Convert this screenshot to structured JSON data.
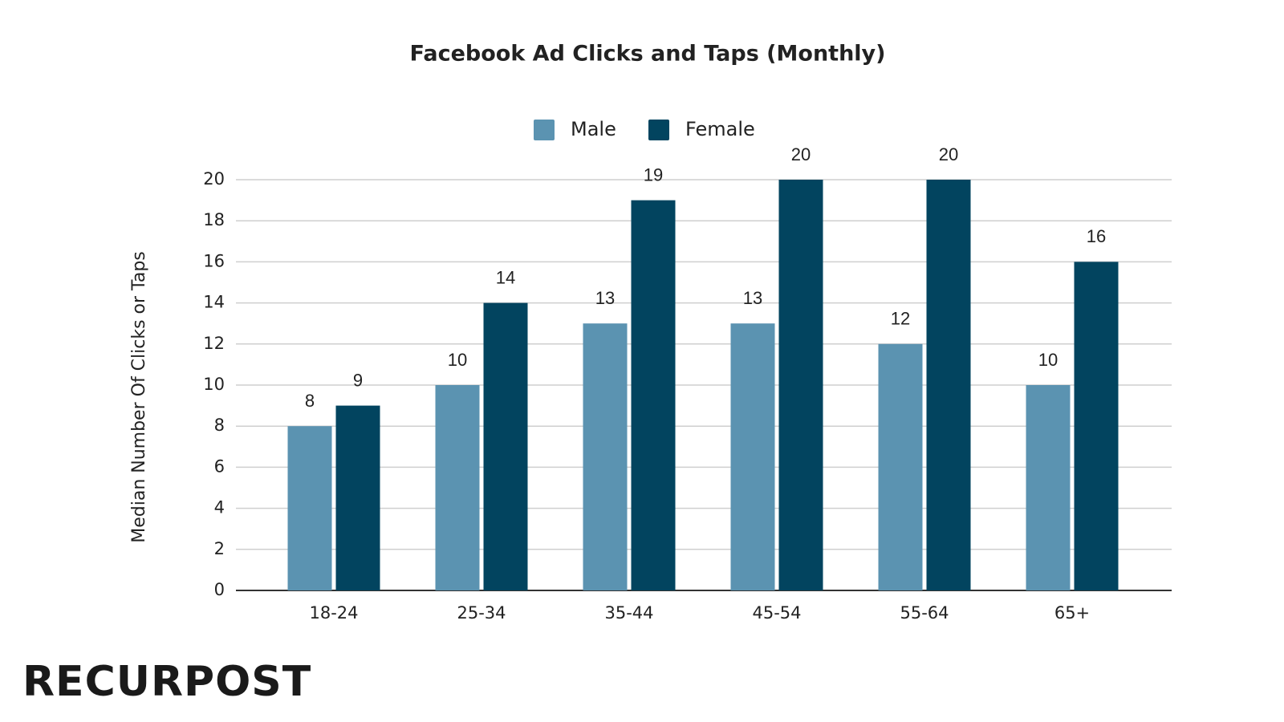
{
  "chart_data": {
    "type": "bar",
    "title": "Facebook Ad Clicks and Taps (Monthly)",
    "y_label": "Median Number Of Clicks or Taps",
    "categories": [
      "18-24",
      "25-34",
      "35-44",
      "45-54",
      "55-64",
      "65+"
    ],
    "series": [
      {
        "name": "Male",
        "color": "#5b93b1",
        "values": [
          8,
          10,
          13,
          13,
          12,
          10
        ]
      },
      {
        "name": "Female",
        "color": "#02445f",
        "values": [
          9,
          14,
          19,
          20,
          20,
          16
        ]
      }
    ],
    "ylim": [
      0,
      20
    ],
    "yticks": [
      0,
      2,
      4,
      6,
      8,
      10,
      12,
      14,
      16,
      18,
      20
    ],
    "grid": true,
    "legend": "top"
  },
  "watermark": "RECURPOST"
}
